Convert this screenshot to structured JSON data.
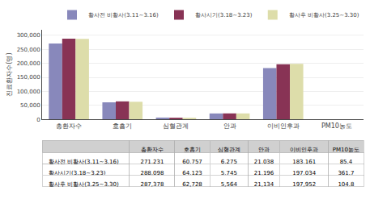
{
  "chart_data": {
    "type": "bar",
    "categories": [
      "총환자수",
      "호흡기",
      "심혈관계",
      "안과",
      "이비인후과",
      "PM10농도"
    ],
    "series": [
      {
        "name": "황사전 비황사(3.11~3.16)",
        "color": "#8888BB",
        "values": [
          271231,
          60757,
          6275,
          21038,
          183161,
          85.4
        ],
        "value_labels": [
          "271,231",
          "60,757",
          "6,275",
          "21,038",
          "183,161",
          "85.4"
        ]
      },
      {
        "name": "황사시기(3.18~3.23)",
        "color": "#883355",
        "values": [
          288098,
          64123,
          5745,
          21196,
          197034,
          361.7
        ],
        "value_labels": [
          "288,098",
          "64,123",
          "5,745",
          "21,196",
          "197,034",
          "361.7"
        ]
      },
      {
        "name": "황사후 비황사(3.25~3.30)",
        "color": "#DDDDAA",
        "values": [
          287378,
          62728,
          5564,
          21134,
          197952,
          104.8
        ],
        "value_labels": [
          "287,378",
          "62,728",
          "5,564",
          "21,134",
          "197,952",
          "104.8"
        ]
      }
    ],
    "ylabel": "진료환자수(명)",
    "ylim": [
      0,
      320000
    ],
    "yticks": [
      0,
      {
        "value": 50000,
        "label": "50,000"
      },
      {
        "value": 100000,
        "label": "100,000"
      },
      {
        "value": 150000,
        "label": "150,000"
      },
      {
        "value": 200000,
        "label": "200,000"
      },
      {
        "value": 250000,
        "label": "250,000"
      },
      {
        "value": 300000,
        "label": "300,000"
      }
    ],
    "grid": true,
    "legend": "upper right"
  }
}
